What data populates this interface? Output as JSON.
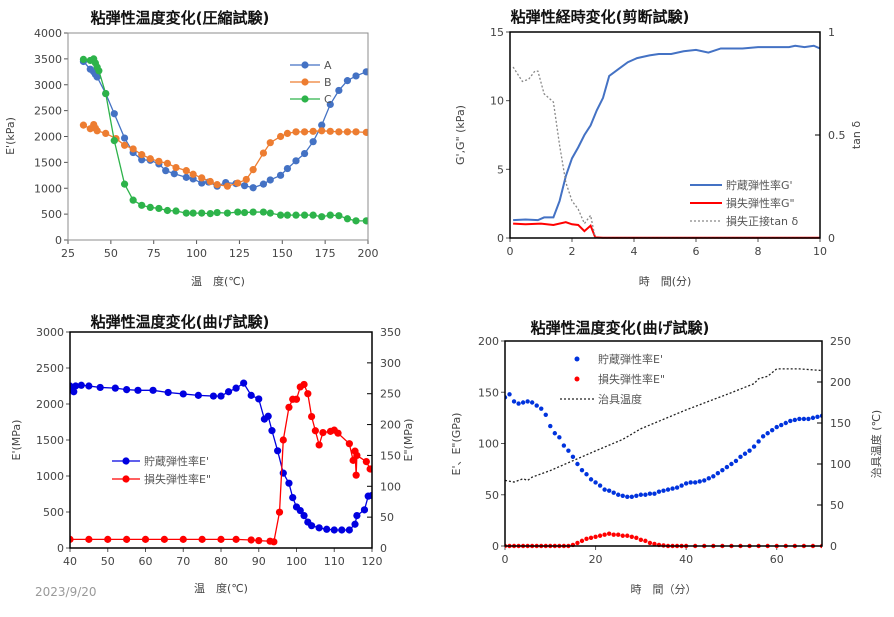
{
  "date_stamp": "2023/9/20",
  "chart_data": [
    {
      "type": "line",
      "title": "粘弾性温度変化(圧縮試験)",
      "xlabel": "温　度(℃)",
      "ylabel": "E'(kPa)",
      "xlim": [
        25,
        200
      ],
      "ylim": [
        0,
        4000
      ],
      "xticks": [
        25,
        50,
        75,
        100,
        125,
        150,
        175,
        200
      ],
      "yticks": [
        0,
        500,
        1000,
        1500,
        2000,
        2500,
        3000,
        3500,
        4000
      ],
      "grid": false,
      "legend": "top-right",
      "frame_color": "#8c8c8c",
      "series": [
        {
          "name": "A",
          "color": "#4472C4",
          "line": "solid",
          "marker": true,
          "x": [
            34,
            38,
            40,
            41,
            42,
            47,
            52,
            58,
            63,
            68,
            73,
            78,
            82,
            87,
            94,
            98,
            103,
            107,
            112,
            117,
            123,
            128,
            133,
            139,
            143,
            149,
            153,
            158,
            163,
            168,
            173,
            178,
            183,
            188,
            193,
            199
          ],
          "y": [
            3450,
            3300,
            3250,
            3200,
            3150,
            2830,
            2440,
            1970,
            1690,
            1550,
            1540,
            1470,
            1340,
            1280,
            1210,
            1180,
            1100,
            1120,
            1040,
            1110,
            1090,
            1050,
            1010,
            1080,
            1160,
            1250,
            1380,
            1530,
            1670,
            1900,
            2220,
            2620,
            2890,
            3080,
            3170,
            3250
          ]
        },
        {
          "name": "B",
          "color": "#ED7D31",
          "line": "solid",
          "marker": true,
          "x": [
            34,
            38,
            40,
            41,
            42,
            47,
            53,
            58,
            63,
            68,
            73,
            78,
            83,
            88,
            94,
            98,
            103,
            108,
            112,
            118,
            124,
            129,
            133,
            139,
            143,
            149,
            153,
            158,
            163,
            168,
            173,
            178,
            183,
            188,
            193,
            199
          ],
          "y": [
            2220,
            2150,
            2230,
            2160,
            2110,
            2060,
            1960,
            1830,
            1760,
            1650,
            1570,
            1520,
            1480,
            1400,
            1340,
            1270,
            1200,
            1130,
            1070,
            1040,
            1100,
            1170,
            1360,
            1680,
            1880,
            2000,
            2060,
            2090,
            2090,
            2100,
            2110,
            2100,
            2090,
            2090,
            2090,
            2080
          ]
        },
        {
          "name": "C",
          "color": "#2DB34A",
          "line": "solid",
          "marker": true,
          "x": [
            34,
            38,
            40,
            41,
            42,
            43,
            47,
            52,
            58,
            63,
            68,
            73,
            78,
            83,
            88,
            94,
            98,
            103,
            108,
            112,
            118,
            124,
            128,
            133,
            139,
            143,
            149,
            153,
            158,
            163,
            168,
            173,
            178,
            183,
            188,
            193,
            199
          ],
          "y": [
            3490,
            3470,
            3500,
            3420,
            3340,
            3270,
            2830,
            1920,
            1080,
            770,
            670,
            630,
            610,
            570,
            560,
            520,
            520,
            520,
            510,
            530,
            520,
            540,
            530,
            540,
            540,
            520,
            480,
            480,
            480,
            480,
            480,
            450,
            480,
            470,
            410,
            370,
            370
          ]
        }
      ]
    },
    {
      "type": "line",
      "title": "粘弾性経時変化(剪断試験)",
      "xlabel": "時　間(分)",
      "ylabel": "G',G\" (kPa)",
      "y2label": "tan δ",
      "xlim": [
        0,
        10
      ],
      "ylim": [
        0,
        15
      ],
      "y2lim": [
        0,
        1
      ],
      "xticks": [
        0,
        2,
        4,
        6,
        8,
        10
      ],
      "yticks": [
        0,
        5,
        10,
        15
      ],
      "y2ticks": [
        0,
        0.5,
        1
      ],
      "grid": false,
      "legend": "bottom-right",
      "frame_color": "#000000",
      "series": [
        {
          "name": "貯蔵弾性率G'",
          "color": "#4472C4",
          "line": "solid",
          "marker": false,
          "axis": "left",
          "x": [
            0.1,
            0.5,
            0.9,
            1.1,
            1.4,
            1.6,
            1.8,
            2.0,
            2.2,
            2.4,
            2.6,
            2.8,
            3.0,
            3.2,
            3.5,
            3.8,
            4.1,
            4.5,
            4.8,
            5.2,
            5.6,
            6.0,
            6.4,
            6.8,
            7.5,
            8.0,
            8.5,
            9.0,
            9.2,
            9.5,
            9.8,
            10
          ],
          "y": [
            1.3,
            1.35,
            1.3,
            1.5,
            1.5,
            2.7,
            4.5,
            5.8,
            6.6,
            7.5,
            8.2,
            9.3,
            10.2,
            11.8,
            12.3,
            12.8,
            13.1,
            13.3,
            13.4,
            13.4,
            13.6,
            13.7,
            13.5,
            13.8,
            13.8,
            13.9,
            13.9,
            13.9,
            14.0,
            13.9,
            14.0,
            13.8
          ]
        },
        {
          "name": "損失弾性率G\"",
          "color": "#FF0000",
          "line": "solid",
          "marker": false,
          "axis": "left",
          "x": [
            0.1,
            0.5,
            1.0,
            1.4,
            1.8,
            2.0,
            2.2,
            2.4,
            2.6,
            2.75,
            3,
            10
          ],
          "y": [
            1.05,
            1.0,
            1.05,
            0.95,
            1.15,
            1.0,
            0.95,
            0.5,
            0.9,
            0.05,
            0.02,
            0.02
          ]
        },
        {
          "name": "損失正接tan δ",
          "color": "#888888",
          "line": "dotted",
          "marker": false,
          "axis": "right",
          "x": [
            0.1,
            0.4,
            0.6,
            0.8,
            0.9,
            1.1,
            1.4,
            1.6,
            1.8,
            2.0,
            2.2,
            2.4,
            2.6,
            2.75,
            10
          ],
          "y": [
            0.83,
            0.76,
            0.77,
            0.81,
            0.81,
            0.7,
            0.66,
            0.45,
            0.27,
            0.18,
            0.14,
            0.07,
            0.11,
            0.0,
            0.0
          ]
        }
      ]
    },
    {
      "type": "line",
      "title": "粘弾性温度変化(曲げ試験)",
      "xlabel": "温　度(℃)",
      "ylabel": "E'(MPa)",
      "y2label": "E\"(MPa)",
      "xlim": [
        40,
        120
      ],
      "ylim": [
        0,
        3000
      ],
      "y2lim": [
        0,
        350
      ],
      "xticks": [
        40,
        50,
        60,
        70,
        80,
        90,
        100,
        110,
        120
      ],
      "yticks": [
        0,
        500,
        1000,
        1500,
        2000,
        2500,
        3000
      ],
      "y2ticks": [
        0,
        50,
        100,
        150,
        200,
        250,
        300,
        350
      ],
      "grid": false,
      "legend": "center-left",
      "frame_color": "#000000",
      "series": [
        {
          "name": "貯蔵弾性率E'",
          "color": "#0000E0",
          "line": "solid",
          "marker": true,
          "axis": "left",
          "x": [
            40,
            40.5,
            41,
            41.5,
            43,
            45,
            48,
            52,
            55,
            58,
            62,
            66,
            70,
            74,
            78,
            80,
            82,
            84,
            86,
            88,
            90,
            91.5,
            92.5,
            93.5,
            95,
            96.5,
            98,
            99,
            100,
            101,
            102,
            103,
            104,
            106,
            108,
            110,
            112,
            114,
            115.5,
            116,
            118,
            119,
            120
          ],
          "y": [
            2250,
            2200,
            2170,
            2250,
            2260,
            2250,
            2230,
            2220,
            2200,
            2190,
            2190,
            2160,
            2140,
            2120,
            2110,
            2110,
            2170,
            2220,
            2290,
            2120,
            2070,
            1790,
            1830,
            1630,
            1350,
            1040,
            900,
            700,
            570,
            520,
            450,
            360,
            310,
            280,
            260,
            250,
            250,
            250,
            330,
            450,
            530,
            720,
            730
          ]
        },
        {
          "name": "損失弾性率E\"",
          "color": "#FF0000",
          "line": "solid",
          "marker": true,
          "axis": "right",
          "x": [
            40,
            45,
            50,
            55,
            60,
            65,
            70,
            75,
            80,
            84,
            88,
            90,
            93,
            94,
            95.5,
            96.5,
            98,
            99,
            100,
            101,
            102,
            103,
            104,
            105,
            106,
            107,
            109,
            110,
            111,
            114,
            115,
            115.5,
            115.8,
            116,
            118.5,
            119.5,
            120
          ],
          "y": [
            14,
            14,
            14,
            14,
            14,
            14,
            14,
            14,
            14,
            14,
            13,
            12,
            11,
            10,
            58,
            175,
            228,
            241,
            241,
            261,
            265,
            250,
            213,
            190,
            167,
            187,
            189,
            191,
            186,
            169,
            142,
            157,
            118,
            150,
            140,
            128,
            128
          ]
        }
      ]
    },
    {
      "type": "scatter",
      "title": "粘弾性温度変化(曲げ試験)",
      "xlabel": "時　間（分）",
      "ylabel": "E'、E\"(GPa)",
      "y2label": "治具温度 (℃)",
      "xlim": [
        0,
        70
      ],
      "ylim": [
        0,
        200
      ],
      "y2lim": [
        0,
        250
      ],
      "xticks": [
        0,
        20,
        40,
        60
      ],
      "yticks": [
        0,
        50,
        100,
        150,
        200
      ],
      "y2ticks": [
        0,
        50,
        100,
        150,
        200,
        250
      ],
      "grid": false,
      "legend": "top-left",
      "frame_color": "#000000",
      "series": [
        {
          "name": "貯蔵弾性率E'",
          "color": "#0033DD",
          "line": "none",
          "marker": true,
          "axis": "left",
          "x": [
            0,
            1,
            2,
            3,
            4,
            5,
            6,
            7,
            8,
            9,
            10,
            11,
            12,
            13,
            14,
            15,
            16,
            17,
            18,
            19,
            20,
            21,
            22,
            23,
            24,
            25,
            26,
            27,
            28,
            29,
            30,
            31,
            32,
            33,
            34,
            35,
            36,
            37,
            38,
            39,
            40,
            41,
            42,
            43,
            44,
            45,
            46,
            47,
            48,
            49,
            50,
            51,
            52,
            53,
            54,
            55,
            56,
            57,
            58,
            59,
            60,
            61,
            62,
            63,
            64,
            65,
            66,
            67,
            68,
            69,
            70
          ],
          "y": [
            145,
            148,
            141,
            139,
            140,
            141,
            140,
            137,
            134,
            128,
            117,
            110,
            106,
            98,
            93,
            87,
            80,
            74,
            70,
            65,
            62,
            59,
            55,
            54,
            52,
            50,
            49,
            48,
            48,
            49,
            50,
            50,
            51,
            51,
            53,
            54,
            55,
            56,
            57,
            59,
            61,
            62,
            62,
            63,
            64,
            66,
            68,
            71,
            74,
            77,
            80,
            83,
            87,
            90,
            93,
            97,
            102,
            107,
            110,
            113,
            116,
            118,
            120,
            122,
            123,
            124,
            124,
            124,
            125,
            126,
            127
          ]
        },
        {
          "name": "損失弾性率E\"",
          "color": "#FF0000",
          "line": "none",
          "marker": true,
          "axis": "left",
          "x": [
            0,
            1,
            2,
            3,
            4,
            5,
            6,
            7,
            8,
            9,
            10,
            11,
            12,
            13,
            14,
            15,
            16,
            17,
            18,
            19,
            20,
            21,
            22,
            23,
            24,
            25,
            26,
            27,
            28,
            29,
            30,
            31,
            32,
            33,
            34,
            35,
            36,
            37,
            38,
            39,
            40,
            42,
            44,
            46,
            48,
            50,
            52,
            54,
            56,
            58,
            60,
            62,
            64,
            66,
            68,
            70
          ],
          "y": [
            0,
            0,
            0,
            0,
            0,
            0,
            0,
            0,
            0,
            0,
            0,
            0,
            0,
            0,
            0,
            1,
            3,
            5,
            7,
            8,
            9,
            10,
            11,
            12,
            11,
            11,
            10,
            10,
            9,
            8,
            6,
            5,
            3,
            2,
            1,
            0.5,
            0,
            0,
            0,
            0,
            0,
            0,
            0,
            0,
            0,
            0,
            0,
            0,
            0,
            0,
            0,
            0,
            0,
            0,
            0,
            0
          ]
        },
        {
          "name": "治具温度",
          "color": "#222222",
          "line": "dotted",
          "marker": false,
          "axis": "right",
          "x": [
            0,
            2,
            4,
            5,
            6,
            10,
            20,
            26,
            30,
            40,
            50,
            55,
            56,
            58,
            60,
            62,
            65,
            70
          ],
          "y": [
            80,
            78,
            82,
            80,
            84,
            92,
            116,
            130,
            143,
            166,
            187,
            198,
            204,
            207,
            216,
            216,
            216,
            214
          ]
        }
      ]
    }
  ]
}
